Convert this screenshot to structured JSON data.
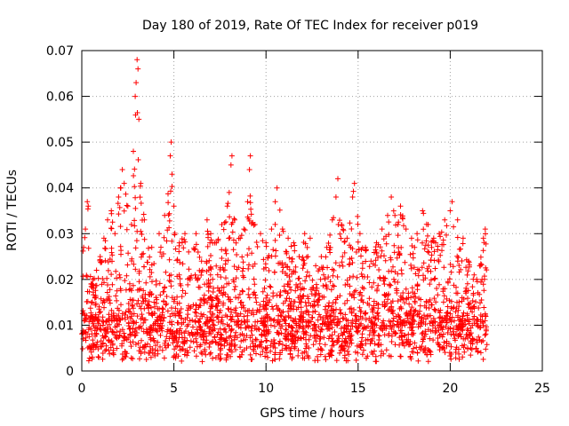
{
  "chart_data": {
    "type": "scatter",
    "title": "Day 180 of 2019, Rate Of TEC Index for receiver p019",
    "xlabel": "GPS time / hours",
    "ylabel": "ROTI / TECUs",
    "xlim": [
      0,
      25
    ],
    "ylim": [
      0,
      0.07
    ],
    "x_ticks": [
      0,
      5,
      10,
      15,
      20,
      25
    ],
    "y_ticks": [
      0,
      0.01,
      0.02,
      0.03,
      0.04,
      0.05,
      0.06,
      0.07
    ],
    "x_tick_labels": [
      "0",
      "5",
      "10",
      "15",
      "20",
      "25"
    ],
    "y_tick_labels": [
      "0",
      "0.01",
      "0.02",
      "0.03",
      "0.04",
      "0.05",
      "0.06",
      "0.07"
    ],
    "grid": true,
    "marker": "+",
    "series": [
      {
        "name": "ROTI",
        "color": "#ff0000",
        "points": [
          [
            0.1,
            0.027
          ],
          [
            0.2,
            0.031
          ],
          [
            0.3,
            0.037
          ],
          [
            0.35,
            0.036
          ],
          [
            0.5,
            0.019
          ],
          [
            0.8,
            0.022
          ],
          [
            1.0,
            0.025
          ],
          [
            1.2,
            0.029
          ],
          [
            1.4,
            0.033
          ],
          [
            1.6,
            0.035
          ],
          [
            1.8,
            0.03
          ],
          [
            2.0,
            0.038
          ],
          [
            2.1,
            0.04
          ],
          [
            2.2,
            0.044
          ],
          [
            2.3,
            0.041
          ],
          [
            2.5,
            0.036
          ],
          [
            2.7,
            0.032
          ],
          [
            2.8,
            0.048
          ],
          [
            2.9,
            0.06
          ],
          [
            2.95,
            0.063
          ],
          [
            3.0,
            0.068
          ],
          [
            3.05,
            0.066
          ],
          [
            3.1,
            0.055
          ],
          [
            3.2,
            0.041
          ],
          [
            3.4,
            0.033
          ],
          [
            3.8,
            0.027
          ],
          [
            4.2,
            0.03
          ],
          [
            4.5,
            0.034
          ],
          [
            4.8,
            0.047
          ],
          [
            4.85,
            0.05
          ],
          [
            4.9,
            0.043
          ],
          [
            5.0,
            0.036
          ],
          [
            5.3,
            0.028
          ],
          [
            5.6,
            0.03
          ],
          [
            5.8,
            0.026
          ],
          [
            6.2,
            0.03
          ],
          [
            6.5,
            0.024
          ],
          [
            6.8,
            0.033
          ],
          [
            7.0,
            0.03
          ],
          [
            7.3,
            0.028
          ],
          [
            7.6,
            0.032
          ],
          [
            7.9,
            0.036
          ],
          [
            8.0,
            0.039
          ],
          [
            8.1,
            0.045
          ],
          [
            8.15,
            0.047
          ],
          [
            8.3,
            0.033
          ],
          [
            8.6,
            0.029
          ],
          [
            8.8,
            0.031
          ],
          [
            9.0,
            0.037
          ],
          [
            9.1,
            0.044
          ],
          [
            9.15,
            0.047
          ],
          [
            9.4,
            0.032
          ],
          [
            9.7,
            0.03
          ],
          [
            10.0,
            0.028
          ],
          [
            10.3,
            0.031
          ],
          [
            10.5,
            0.037
          ],
          [
            10.6,
            0.04
          ],
          [
            10.9,
            0.031
          ],
          [
            11.2,
            0.029
          ],
          [
            11.5,
            0.028
          ],
          [
            11.8,
            0.025
          ],
          [
            12.1,
            0.03
          ],
          [
            12.4,
            0.029
          ],
          [
            12.7,
            0.023
          ],
          [
            13.0,
            0.025
          ],
          [
            13.3,
            0.027
          ],
          [
            13.6,
            0.033
          ],
          [
            13.8,
            0.038
          ],
          [
            13.9,
            0.042
          ],
          [
            14.1,
            0.032
          ],
          [
            14.4,
            0.029
          ],
          [
            14.7,
            0.038
          ],
          [
            14.8,
            0.041
          ],
          [
            15.1,
            0.03
          ],
          [
            15.4,
            0.027
          ],
          [
            15.7,
            0.024
          ],
          [
            16.0,
            0.028
          ],
          [
            16.3,
            0.031
          ],
          [
            16.6,
            0.034
          ],
          [
            16.8,
            0.038
          ],
          [
            17.0,
            0.034
          ],
          [
            17.3,
            0.036
          ],
          [
            17.6,
            0.031
          ],
          [
            17.9,
            0.029
          ],
          [
            18.2,
            0.03
          ],
          [
            18.5,
            0.035
          ],
          [
            18.8,
            0.032
          ],
          [
            19.1,
            0.029
          ],
          [
            19.4,
            0.03
          ],
          [
            19.7,
            0.033
          ],
          [
            20.0,
            0.035
          ],
          [
            20.1,
            0.037
          ],
          [
            20.4,
            0.033
          ],
          [
            20.7,
            0.029
          ],
          [
            21.0,
            0.024
          ],
          [
            21.3,
            0.021
          ],
          [
            21.6,
            0.023
          ],
          [
            21.8,
            0.029
          ],
          [
            21.9,
            0.031
          ]
        ],
        "dense_band": {
          "x_range": [
            0,
            22
          ],
          "baseline_range": [
            0.002,
            0.012
          ],
          "spread_range": [
            0.012,
            0.03
          ]
        }
      }
    ]
  }
}
